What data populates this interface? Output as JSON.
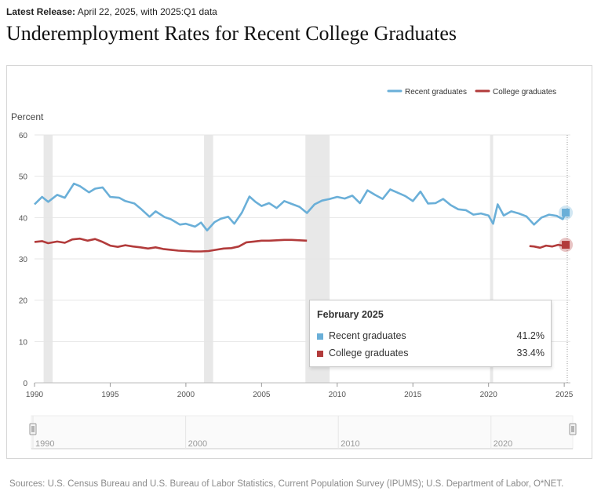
{
  "header": {
    "release_label": "Latest Release:",
    "release_text": "April 22, 2025, with 2025:Q1 data",
    "title": "Underemployment Rates for Recent College Graduates"
  },
  "sources": "Sources: U.S. Census Bureau and U.S. Bureau of Labor Statistics, Current Population Survey (IPUMS); U.S. Department of Labor, O*NET.",
  "colors": {
    "recent": "#6aafd8",
    "college": "#b23b3b",
    "recession": "#e8e8e8",
    "grid": "#e6e6e6"
  },
  "tooltip": {
    "title": "February 2025",
    "rows": [
      {
        "label": "Recent graduates",
        "value": "41.2%"
      },
      {
        "label": "College graduates",
        "value": "33.4%"
      }
    ]
  },
  "navigator": {
    "labels": [
      "1990",
      "2000",
      "2010",
      "2020"
    ]
  },
  "chart_data": {
    "type": "line",
    "title": "Underemployment Rates for Recent College Graduates",
    "ylabel": "Percent",
    "xlabel": "",
    "ylim": [
      0,
      60
    ],
    "yticks": [
      0,
      10,
      20,
      30,
      40,
      50,
      60
    ],
    "xlim": [
      1990,
      2025.2
    ],
    "xticks": [
      1990,
      1995,
      2000,
      2005,
      2010,
      2015,
      2020,
      2025
    ],
    "legend_position": "top-right",
    "recessions": [
      [
        1990.6,
        1991.2
      ],
      [
        2001.2,
        2001.8
      ],
      [
        2007.9,
        2009.5
      ],
      [
        2020.1,
        2020.3
      ]
    ],
    "series": [
      {
        "name": "Recent graduates",
        "x": [
          1990.0,
          1990.5,
          1990.9,
          1991.5,
          1992.0,
          1992.6,
          1993.0,
          1993.6,
          1994.0,
          1994.5,
          1995.0,
          1995.6,
          1996.0,
          1996.6,
          1997.0,
          1997.6,
          1998.0,
          1998.6,
          1999.0,
          1999.6,
          2000.0,
          2000.6,
          2001.0,
          2001.4,
          2001.9,
          2002.3,
          2002.8,
          2003.2,
          2003.7,
          2004.2,
          2004.6,
          2005.0,
          2005.5,
          2006.0,
          2006.5,
          2007.0,
          2007.5,
          2008.0,
          2008.5,
          2009.0,
          2009.5,
          2010.0,
          2010.5,
          2011.0,
          2011.5,
          2012.0,
          2012.5,
          2013.0,
          2013.5,
          2014.0,
          2014.5,
          2015.0,
          2015.5,
          2016.0,
          2016.5,
          2017.0,
          2017.5,
          2018.0,
          2018.5,
          2019.0,
          2019.5,
          2020.0,
          2020.3,
          2020.6,
          2021.0,
          2021.5,
          2022.0,
          2022.5,
          2023.0,
          2023.5,
          2024.0,
          2024.5,
          2024.9,
          2025.1
        ],
        "values": [
          43.2,
          45.0,
          43.8,
          45.5,
          44.8,
          48.2,
          47.6,
          46.1,
          47.0,
          47.3,
          45.0,
          44.8,
          44.0,
          43.4,
          42.2,
          40.2,
          41.5,
          40.1,
          39.6,
          38.3,
          38.5,
          37.8,
          38.8,
          36.9,
          38.9,
          39.7,
          40.2,
          38.5,
          41.2,
          45.1,
          43.8,
          42.8,
          43.5,
          42.3,
          44.0,
          43.3,
          42.6,
          41.1,
          43.2,
          44.1,
          44.5,
          45.0,
          44.6,
          45.3,
          43.5,
          46.6,
          45.5,
          44.5,
          46.8,
          46.0,
          45.2,
          44.0,
          46.3,
          43.4,
          43.5,
          44.5,
          43.0,
          42.0,
          41.8,
          40.7,
          41.0,
          40.5,
          38.5,
          43.2,
          40.5,
          41.5,
          41.0,
          40.3,
          38.3,
          40.0,
          40.7,
          40.4,
          39.6,
          41.2
        ]
      },
      {
        "name": "College graduates",
        "x": [
          1990.0,
          1990.5,
          1990.9,
          1991.5,
          1992.0,
          1992.5,
          1993.0,
          1993.5,
          1994.0,
          1994.5,
          1995.0,
          1995.5,
          1996.0,
          1996.5,
          1997.0,
          1997.5,
          1998.0,
          1998.5,
          1999.0,
          1999.5,
          2000.0,
          2000.5,
          2001.0,
          2001.5,
          2002.0,
          2002.5,
          2003.0,
          2003.5,
          2004.0,
          2004.5,
          2005.0,
          2005.5,
          2006.0,
          2006.5,
          2007.0,
          2007.5,
          2008.0
        ],
        "values": [
          34.1,
          34.3,
          33.8,
          34.2,
          33.9,
          34.7,
          34.9,
          34.4,
          34.8,
          34.1,
          33.2,
          32.9,
          33.3,
          33.0,
          32.8,
          32.5,
          32.8,
          32.4,
          32.2,
          32.0,
          31.9,
          31.8,
          31.8,
          31.9,
          32.2,
          32.5,
          32.6,
          33.0,
          34.0,
          34.2,
          34.4,
          34.4,
          34.5,
          34.6,
          34.6,
          34.5,
          34.4
        ],
        "x_tail": [
          2022.7,
          2023.0,
          2023.4,
          2023.8,
          2024.2,
          2024.6,
          2024.9,
          2025.1
        ],
        "values_tail": [
          33.1,
          33.0,
          32.7,
          33.2,
          33.0,
          33.4,
          33.2,
          33.4
        ]
      }
    ]
  }
}
